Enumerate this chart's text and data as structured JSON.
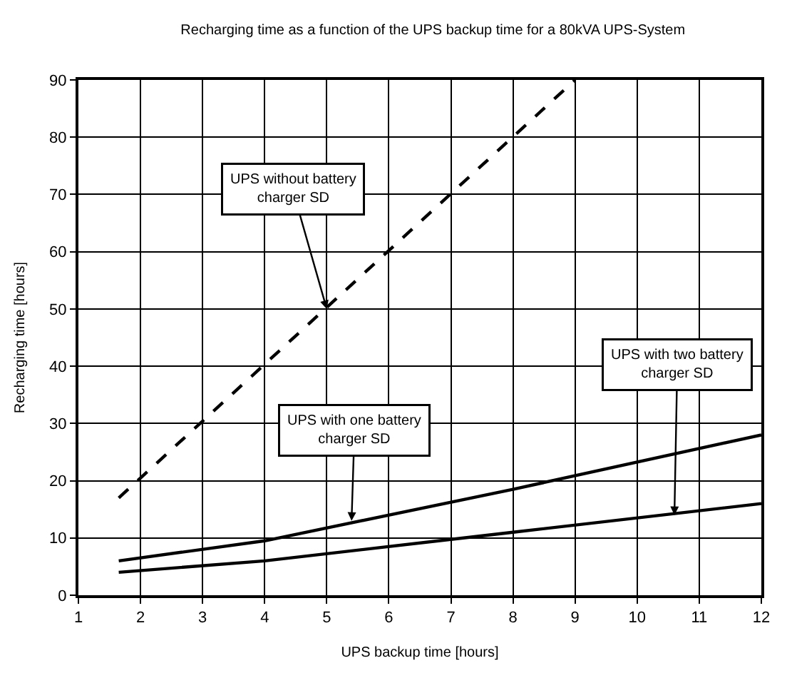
{
  "chart_data": {
    "type": "line",
    "title": "Recharging time as a function of the UPS backup time for a 80kVA UPS-System",
    "xlabel": "UPS backup time [hours]",
    "ylabel": "Recharging time [hours]",
    "series": [
      {
        "x": [
          1.65,
          9
        ],
        "values": [
          17,
          90
        ],
        "color": "#000000",
        "line_style": "dashed"
      },
      {
        "x": [
          1.65,
          4,
          8,
          12
        ],
        "values": [
          6,
          9.5,
          18.5,
          28
        ],
        "color": "#000000",
        "line_style": "solid"
      },
      {
        "x": [
          1.65,
          4,
          8,
          12
        ],
        "values": [
          4,
          6,
          11,
          16
        ],
        "color": "#000000",
        "line_style": "solid"
      }
    ],
    "xlim": [
      1,
      12
    ],
    "xticks": [
      1,
      2,
      3,
      4,
      5,
      6,
      7,
      8,
      9,
      10,
      11,
      12
    ],
    "ylim": [
      0,
      90
    ],
    "yticks": [
      0,
      10,
      20,
      30,
      40,
      50,
      60,
      70,
      80,
      90
    ],
    "grid": true,
    "marker": "none",
    "annotations": [
      {
        "text": "UPS without battery charger SD",
        "x": 5,
        "y": 50
      },
      {
        "text": "UPS with one battery charger SD",
        "x": 5.4,
        "y": 13
      },
      {
        "text": "UPS with two battery charger SD",
        "x": 10.6,
        "y": 14
      }
    ]
  }
}
